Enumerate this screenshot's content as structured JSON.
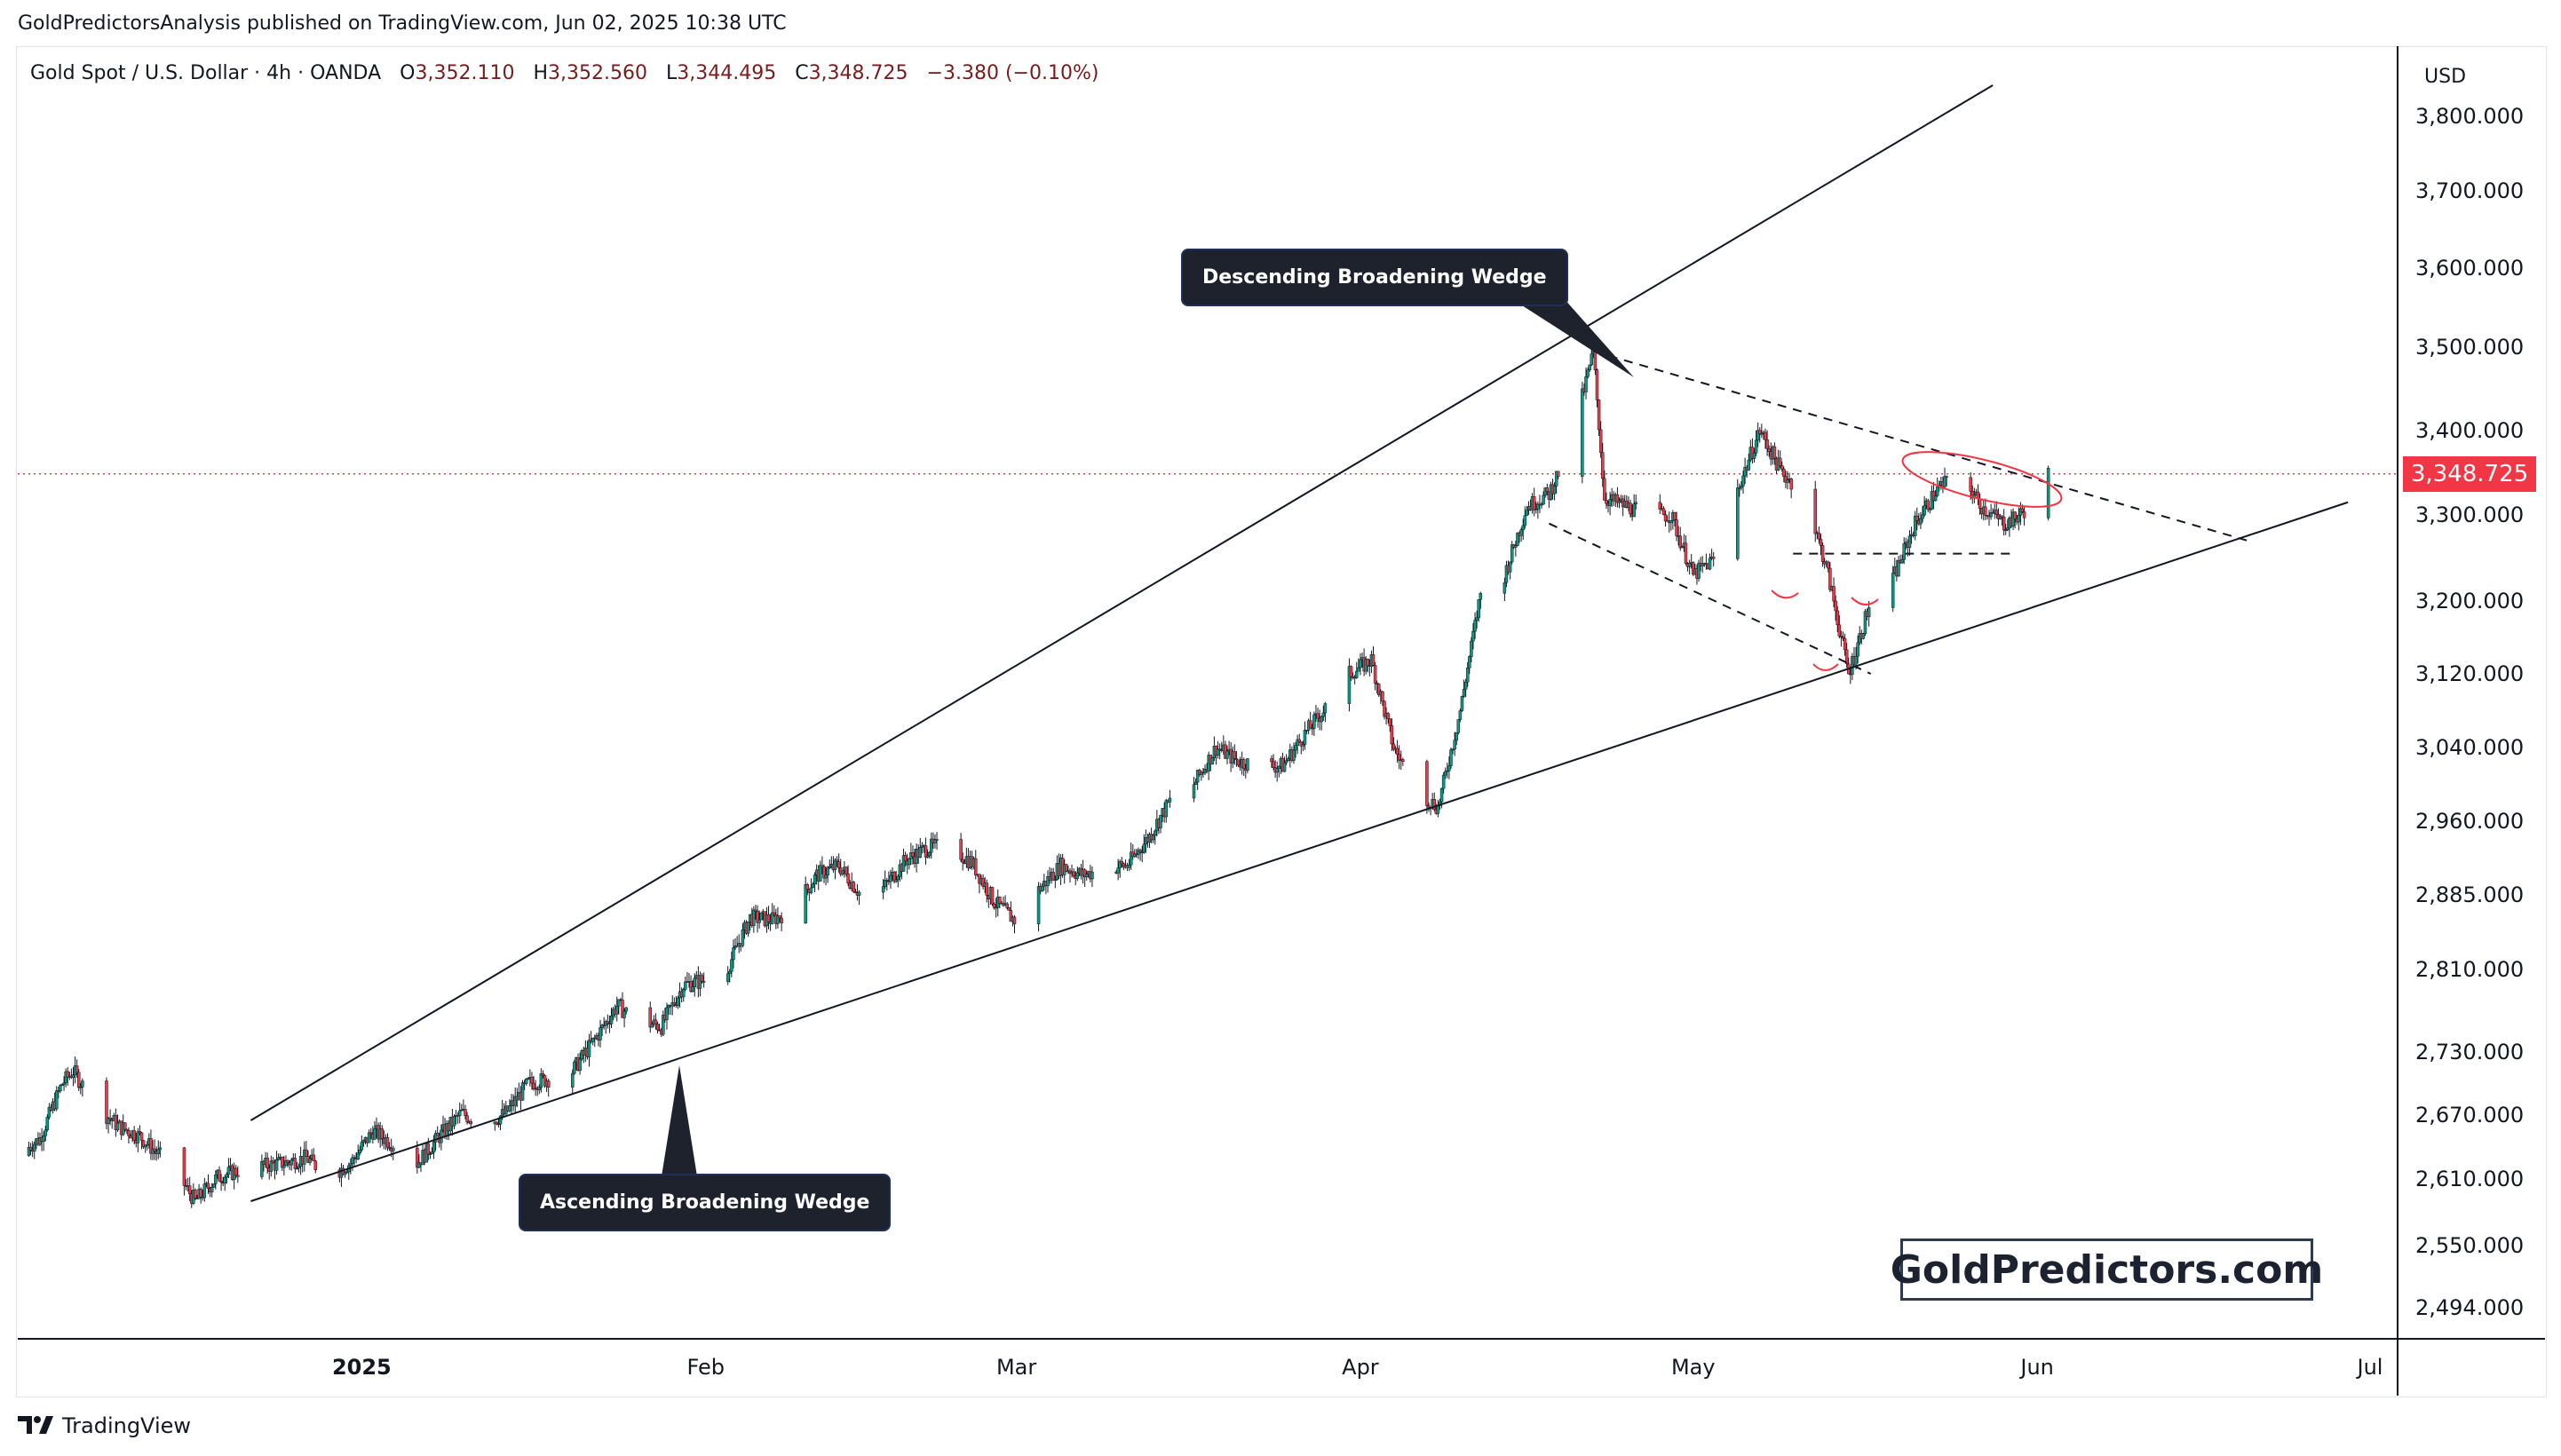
{
  "header": {
    "published": "GoldPredictorsAnalysis published on TradingView.com, Jun 02, 2025 10:38 UTC"
  },
  "legend": {
    "symbol": "Gold Spot / U.S. Dollar · 4h · OANDA",
    "open_label": "O",
    "open": "3,352.110",
    "high_label": "H",
    "high": "3,352.560",
    "low_label": "L",
    "low": "3,344.495",
    "close_label": "C",
    "close": "3,348.725",
    "change": "−3.380 (−0.10%)"
  },
  "currency": "USD",
  "last_price_tag": "3,348.725",
  "callouts": {
    "top": "Descending Broadening Wedge",
    "bottom": "Ascending Broadening Wedge"
  },
  "brand": "GoldPredictors.com",
  "footer": {
    "logo_text": "TradingView"
  },
  "colors": {
    "up_candle": "#089981",
    "down_candle": "#f23645",
    "candle_stroke": "#131722",
    "price_line": "#f23645",
    "callout_bg": "#1e222d"
  },
  "chart_data": {
    "type": "candlestick",
    "title": "Gold Spot / U.S. Dollar · 4h · OANDA",
    "y_scale": "log",
    "ylim": [
      2460,
      3880
    ],
    "y_ticks": [
      "3,800.000",
      "3,700.000",
      "3,600.000",
      "3,500.000",
      "3,400.000",
      "3,300.000",
      "3,200.000",
      "3,120.000",
      "3,040.000",
      "2,960.000",
      "2,885.000",
      "2,810.000",
      "2,730.000",
      "2,670.000",
      "2,610.000",
      "2,550.000",
      "2,494.000"
    ],
    "y_tick_values": [
      3800,
      3700,
      3600,
      3500,
      3400,
      3300,
      3200,
      3120,
      3040,
      2960,
      2885,
      2810,
      2730,
      2670,
      2610,
      2550,
      2494
    ],
    "x_ticks": [
      {
        "label": "2025",
        "date": "2025-01-01"
      },
      {
        "label": "Feb",
        "date": "2025-02-01"
      },
      {
        "label": "Mar",
        "date": "2025-03-01"
      },
      {
        "label": "Apr",
        "date": "2025-04-01"
      },
      {
        "label": "May",
        "date": "2025-05-01"
      },
      {
        "label": "Jun",
        "date": "2025-06-01"
      },
      {
        "label": "Jul",
        "date": "2025-07-01"
      }
    ],
    "xlim": [
      "2024-12-01",
      "2025-07-03"
    ],
    "last_price": 3348.725,
    "price_path": [
      [
        "2024-12-01",
        2632
      ],
      [
        "2024-12-03",
        2648
      ],
      [
        "2024-12-05",
        2700
      ],
      [
        "2024-12-06",
        2712
      ],
      [
        "2024-12-08",
        2680
      ],
      [
        "2024-12-10",
        2660
      ],
      [
        "2024-12-12",
        2650
      ],
      [
        "2024-12-13",
        2640
      ],
      [
        "2024-12-15",
        2620
      ],
      [
        "2024-12-17",
        2590
      ],
      [
        "2024-12-19",
        2612
      ],
      [
        "2024-12-21",
        2618
      ],
      [
        "2024-12-23",
        2622
      ],
      [
        "2024-12-25",
        2625
      ],
      [
        "2024-12-27",
        2630
      ],
      [
        "2024-12-29",
        2612
      ],
      [
        "2024-12-31",
        2625
      ],
      [
        "2025-01-02",
        2655
      ],
      [
        "2025-01-04",
        2642
      ],
      [
        "2025-01-06",
        2625
      ],
      [
        "2025-01-08",
        2650
      ],
      [
        "2025-01-10",
        2672
      ],
      [
        "2025-01-12",
        2660
      ],
      [
        "2025-01-14",
        2672
      ],
      [
        "2025-01-16",
        2700
      ],
      [
        "2025-01-18",
        2705
      ],
      [
        "2025-01-20",
        2712
      ],
      [
        "2025-01-22",
        2742
      ],
      [
        "2025-01-24",
        2775
      ],
      [
        "2025-01-26",
        2760
      ],
      [
        "2025-01-28",
        2755
      ],
      [
        "2025-01-30",
        2795
      ],
      [
        "2025-02-01",
        2800
      ],
      [
        "2025-02-03",
        2812
      ],
      [
        "2025-02-05",
        2862
      ],
      [
        "2025-02-07",
        2860
      ],
      [
        "2025-02-09",
        2872
      ],
      [
        "2025-02-11",
        2905
      ],
      [
        "2025-02-13",
        2915
      ],
      [
        "2025-02-15",
        2885
      ],
      [
        "2025-02-17",
        2892
      ],
      [
        "2025-02-19",
        2920
      ],
      [
        "2025-02-21",
        2933
      ],
      [
        "2025-02-23",
        2935
      ],
      [
        "2025-02-25",
        2918
      ],
      [
        "2025-02-27",
        2878
      ],
      [
        "2025-03-01",
        2858
      ],
      [
        "2025-03-03",
        2890
      ],
      [
        "2025-03-05",
        2915
      ],
      [
        "2025-03-07",
        2905
      ],
      [
        "2025-03-09",
        2912
      ],
      [
        "2025-03-11",
        2915
      ],
      [
        "2025-03-13",
        2945
      ],
      [
        "2025-03-15",
        2985
      ],
      [
        "2025-03-17",
        3000
      ],
      [
        "2025-03-19",
        3040
      ],
      [
        "2025-03-21",
        3025
      ],
      [
        "2025-03-23",
        3020
      ],
      [
        "2025-03-25",
        3020
      ],
      [
        "2025-03-27",
        3055
      ],
      [
        "2025-03-29",
        3085
      ],
      [
        "2025-03-31",
        3120
      ],
      [
        "2025-04-02",
        3135
      ],
      [
        "2025-04-04",
        3040
      ],
      [
        "2025-04-06",
        2995
      ],
      [
        "2025-04-08",
        2975
      ],
      [
        "2025-04-10",
        3080
      ],
      [
        "2025-04-12",
        3220
      ],
      [
        "2025-04-14",
        3230
      ],
      [
        "2025-04-16",
        3310
      ],
      [
        "2025-04-18",
        3325
      ],
      [
        "2025-04-20",
        3385
      ],
      [
        "2025-04-22",
        3495
      ],
      [
        "2025-04-23",
        3320
      ],
      [
        "2025-04-25",
        3310
      ],
      [
        "2025-04-27",
        3300
      ],
      [
        "2025-04-29",
        3300
      ],
      [
        "2025-05-01",
        3230
      ],
      [
        "2025-05-03",
        3250
      ],
      [
        "2025-05-05",
        3330
      ],
      [
        "2025-05-07",
        3400
      ],
      [
        "2025-05-09",
        3350
      ],
      [
        "2025-05-11",
        3325
      ],
      [
        "2025-05-13",
        3240
      ],
      [
        "2025-05-15",
        3120
      ],
      [
        "2025-05-17",
        3200
      ],
      [
        "2025-05-19",
        3225
      ],
      [
        "2025-05-21",
        3290
      ],
      [
        "2025-05-23",
        3330
      ],
      [
        "2025-05-25",
        3350
      ],
      [
        "2025-05-27",
        3310
      ],
      [
        "2025-05-29",
        3290
      ],
      [
        "2025-05-30",
        3295
      ],
      [
        "2025-06-01",
        3320
      ],
      [
        "2025-06-02",
        3348.725
      ]
    ]
  }
}
